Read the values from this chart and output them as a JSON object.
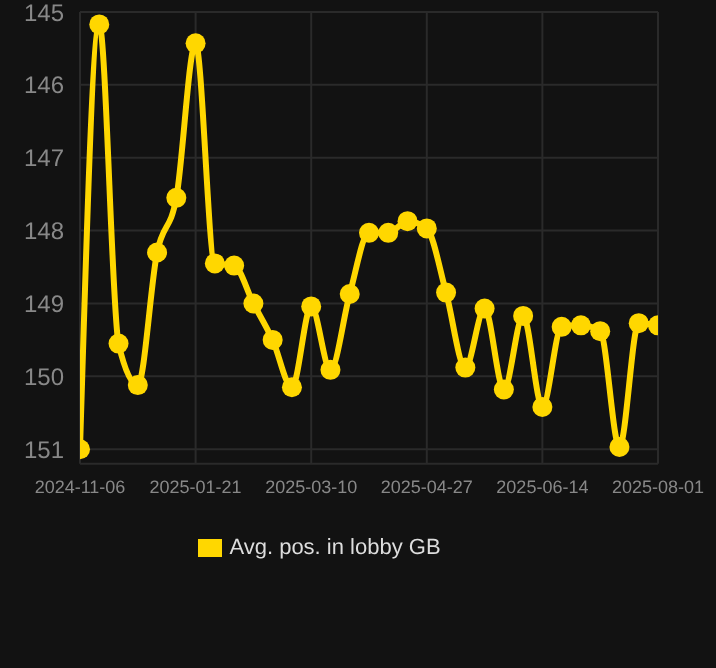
{
  "chart_data": {
    "type": "line",
    "categories": [
      "2024-11-06",
      null,
      null,
      null,
      null,
      null,
      "2025-01-21",
      null,
      null,
      null,
      null,
      null,
      "2025-03-10",
      null,
      null,
      null,
      null,
      null,
      "2025-04-27",
      null,
      null,
      null,
      null,
      null,
      "2025-06-14",
      null,
      null,
      null,
      null,
      null,
      "2025-08-01"
    ],
    "series": [
      {
        "name": "Avg. pos. in lobby GB",
        "color": "#ffd700",
        "values": [
          151.0,
          145.17,
          149.55,
          150.12,
          148.3,
          147.55,
          145.43,
          148.45,
          148.48,
          149.0,
          149.5,
          150.15,
          149.04,
          149.91,
          148.87,
          148.03,
          148.03,
          147.87,
          147.97,
          148.85,
          149.88,
          149.07,
          150.18,
          149.17,
          150.42,
          149.32,
          149.3,
          149.38,
          150.97,
          149.27,
          149.3
        ]
      }
    ],
    "ylim": [
      151.2,
      145
    ],
    "yticks": [
      145,
      146,
      147,
      148,
      149,
      150,
      151
    ],
    "grid": true,
    "legend": "bottom",
    "marker": "circle",
    "line_style": "solid"
  }
}
